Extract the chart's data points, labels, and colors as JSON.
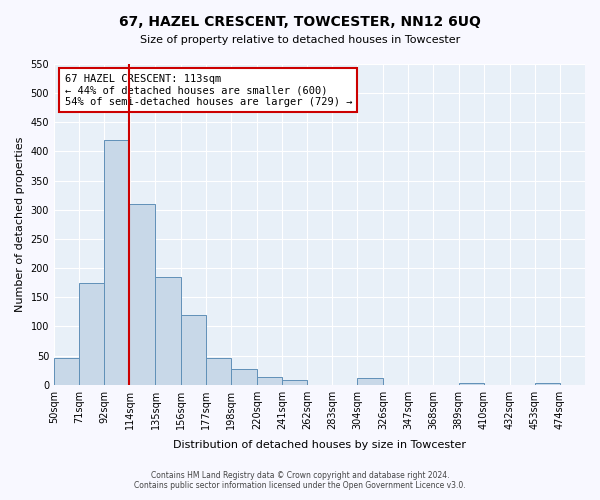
{
  "title": "67, HAZEL CRESCENT, TOWCESTER, NN12 6UQ",
  "subtitle": "Size of property relative to detached houses in Towcester",
  "xlabel": "Distribution of detached houses by size in Towcester",
  "ylabel": "Number of detached properties",
  "bar_left_edges": [
    50,
    71,
    92,
    113,
    135,
    156,
    177,
    198,
    220,
    241,
    262,
    283,
    304,
    326,
    347,
    368,
    389,
    410,
    432,
    453
  ],
  "bar_widths": [
    21,
    21,
    21,
    22,
    21,
    21,
    21,
    22,
    21,
    21,
    21,
    21,
    22,
    21,
    21,
    21,
    21,
    22,
    21,
    21
  ],
  "bar_heights": [
    46,
    175,
    420,
    310,
    184,
    120,
    45,
    27,
    13,
    8,
    0,
    0,
    11,
    0,
    0,
    0,
    3,
    0,
    0,
    3
  ],
  "bar_color": "#c8d8e8",
  "bar_edgecolor": "#6090b8",
  "xtick_labels": [
    "50sqm",
    "71sqm",
    "92sqm",
    "114sqm",
    "135sqm",
    "156sqm",
    "177sqm",
    "198sqm",
    "220sqm",
    "241sqm",
    "262sqm",
    "283sqm",
    "304sqm",
    "326sqm",
    "347sqm",
    "368sqm",
    "389sqm",
    "410sqm",
    "432sqm",
    "453sqm",
    "474sqm"
  ],
  "xtick_positions": [
    50,
    71,
    92,
    114,
    135,
    156,
    177,
    198,
    220,
    241,
    262,
    283,
    304,
    326,
    347,
    368,
    389,
    410,
    432,
    453,
    474
  ],
  "ylim": [
    0,
    550
  ],
  "yticks": [
    0,
    50,
    100,
    150,
    200,
    250,
    300,
    350,
    400,
    450,
    500,
    550
  ],
  "property_line_x": 113,
  "property_line_color": "#cc0000",
  "annotation_title": "67 HAZEL CRESCENT: 113sqm",
  "annotation_line1": "← 44% of detached houses are smaller (600)",
  "annotation_line2": "54% of semi-detached houses are larger (729) →",
  "annotation_box_color": "#cc0000",
  "background_color": "#e8f0f8",
  "footer_line1": "Contains HM Land Registry data © Crown copyright and database right 2024.",
  "footer_line2": "Contains public sector information licensed under the Open Government Licence v3.0."
}
